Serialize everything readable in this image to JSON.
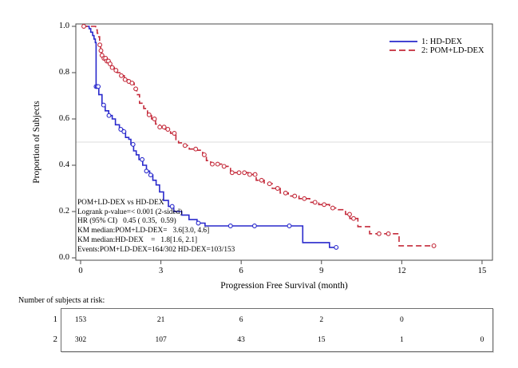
{
  "chart_data": {
    "type": "line",
    "subtype": "kaplan-meier-step",
    "title": "",
    "xlabel": "Progression Free Survival (month)",
    "ylabel": "Proportion of Subjects",
    "xlim": [
      0,
      15
    ],
    "ylim": [
      0.0,
      1.0
    ],
    "xticks": [
      "0",
      "3",
      "6",
      "9",
      "12",
      "15"
    ],
    "xtick_values": [
      0,
      3,
      6,
      9,
      12,
      15
    ],
    "yticks": [
      "0.0",
      "0.2",
      "0.4",
      "0.6",
      "0.8",
      "1.0"
    ],
    "ytick_values": [
      0.0,
      0.2,
      0.4,
      0.6,
      0.8,
      1.0
    ],
    "reference_line_y": 0.5,
    "grid": "single-horizontal-reference",
    "legend_position": "top-right-inside",
    "colors": {
      "hd_dex": "#2929cc",
      "pom_ld_dex": "#c42a3a",
      "reference_line": "#dcdcdc",
      "frame": "#4a4a4a"
    },
    "legend": [
      {
        "label": "1: HD-DEX",
        "color": "#2929cc",
        "style": "solid"
      },
      {
        "label": "2: POM+LD-DEX",
        "color": "#c42a3a",
        "style": "dashed"
      }
    ],
    "series": [
      {
        "name": "1: HD-DEX",
        "color": "#2929cc",
        "dash": "",
        "steps": [
          [
            0.06,
            1.0
          ],
          [
            0.28,
            1.0
          ],
          [
            0.32,
            0.99
          ],
          [
            0.38,
            0.975
          ],
          [
            0.45,
            0.96
          ],
          [
            0.5,
            0.945
          ],
          [
            0.55,
            0.93
          ],
          [
            0.58,
            0.74
          ],
          [
            0.68,
            0.705
          ],
          [
            0.8,
            0.66
          ],
          [
            0.92,
            0.635
          ],
          [
            1.05,
            0.615
          ],
          [
            1.18,
            0.6
          ],
          [
            1.3,
            0.575
          ],
          [
            1.45,
            0.555
          ],
          [
            1.58,
            0.545
          ],
          [
            1.68,
            0.52
          ],
          [
            1.8,
            0.512
          ],
          [
            1.88,
            0.49
          ],
          [
            1.98,
            0.462
          ],
          [
            2.08,
            0.445
          ],
          [
            2.18,
            0.425
          ],
          [
            2.32,
            0.4
          ],
          [
            2.46,
            0.375
          ],
          [
            2.58,
            0.358
          ],
          [
            2.7,
            0.335
          ],
          [
            2.82,
            0.315
          ],
          [
            2.95,
            0.285
          ],
          [
            3.1,
            0.248
          ],
          [
            3.28,
            0.222
          ],
          [
            3.48,
            0.2
          ],
          [
            3.78,
            0.185
          ],
          [
            4.05,
            0.165
          ],
          [
            4.35,
            0.15
          ],
          [
            4.65,
            0.138
          ],
          [
            8.3,
            0.066
          ],
          [
            9.3,
            0.045
          ],
          [
            9.55,
            0.045
          ]
        ],
        "censor_times": [
          0.58,
          0.62,
          0.66,
          0.86,
          1.06,
          1.5,
          1.62,
          1.96,
          2.3,
          2.46,
          2.62,
          3.42,
          4.4,
          5.6,
          6.5,
          7.8,
          9.55
        ]
      },
      {
        "name": "2: POM+LD-DEX",
        "color": "#c42a3a",
        "dash": "7 4",
        "steps": [
          [
            0.06,
            1.0
          ],
          [
            0.5,
            1.0
          ],
          [
            0.56,
            0.985
          ],
          [
            0.62,
            0.97
          ],
          [
            0.68,
            0.955
          ],
          [
            0.71,
            0.92
          ],
          [
            0.75,
            0.895
          ],
          [
            0.79,
            0.875
          ],
          [
            0.86,
            0.862
          ],
          [
            0.96,
            0.85
          ],
          [
            1.06,
            0.838
          ],
          [
            1.16,
            0.822
          ],
          [
            1.26,
            0.81
          ],
          [
            1.36,
            0.8
          ],
          [
            1.5,
            0.787
          ],
          [
            1.63,
            0.77
          ],
          [
            1.76,
            0.762
          ],
          [
            1.9,
            0.755
          ],
          [
            2.0,
            0.73
          ],
          [
            2.1,
            0.705
          ],
          [
            2.2,
            0.668
          ],
          [
            2.36,
            0.645
          ],
          [
            2.5,
            0.618
          ],
          [
            2.65,
            0.6
          ],
          [
            2.8,
            0.578
          ],
          [
            2.96,
            0.565
          ],
          [
            3.16,
            0.555
          ],
          [
            3.36,
            0.538
          ],
          [
            3.56,
            0.508
          ],
          [
            3.66,
            0.497
          ],
          [
            3.86,
            0.485
          ],
          [
            4.06,
            0.47
          ],
          [
            4.36,
            0.465
          ],
          [
            4.56,
            0.445
          ],
          [
            4.7,
            0.42
          ],
          [
            4.86,
            0.405
          ],
          [
            5.3,
            0.395
          ],
          [
            5.6,
            0.368
          ],
          [
            6.26,
            0.36
          ],
          [
            6.56,
            0.335
          ],
          [
            6.86,
            0.32
          ],
          [
            7.16,
            0.3
          ],
          [
            7.46,
            0.28
          ],
          [
            7.76,
            0.267
          ],
          [
            8.16,
            0.256
          ],
          [
            8.56,
            0.24
          ],
          [
            8.9,
            0.23
          ],
          [
            9.3,
            0.215
          ],
          [
            9.56,
            0.208
          ],
          [
            9.9,
            0.188
          ],
          [
            10.06,
            0.17
          ],
          [
            10.36,
            0.135
          ],
          [
            10.8,
            0.104
          ],
          [
            11.9,
            0.052
          ],
          [
            13.2,
            0.052
          ]
        ],
        "censor_times": [
          0.12,
          0.72,
          0.76,
          0.8,
          0.87,
          0.93,
          0.98,
          1.04,
          1.1,
          1.18,
          1.32,
          1.52,
          1.66,
          1.8,
          1.92,
          2.06,
          2.56,
          2.76,
          2.96,
          3.12,
          3.26,
          3.5,
          3.9,
          4.3,
          4.62,
          4.92,
          5.12,
          5.36,
          5.66,
          5.92,
          6.12,
          6.32,
          6.52,
          6.76,
          7.06,
          7.36,
          7.66,
          8.0,
          8.36,
          8.76,
          9.1,
          9.42,
          10.05,
          10.2,
          11.15,
          11.5,
          13.2
        ]
      }
    ],
    "annotations": {
      "lines": [
        "POM+LD-DEX vs HD-DEX",
        "Logrank p-value=< 0.001 (2-sided)",
        "HR (95% CI)   0.45 ( 0.35,  0.59)",
        "KM median:POM+LD-DEX=   3.6[3.0, 4.6]",
        "KM median:HD-DEX    =   1.8[1.6, 2.1]",
        "Events:POM+LD-DEX=164/302 HD-DEX=103/153"
      ]
    }
  },
  "risk_table": {
    "title": "Number of subjects at risk:",
    "times": [
      0,
      3,
      6,
      9,
      12,
      15
    ],
    "rows": [
      {
        "label": "1",
        "counts": [
          153,
          21,
          6,
          2,
          0,
          null
        ]
      },
      {
        "label": "2",
        "counts": [
          302,
          107,
          43,
          15,
          1,
          0
        ]
      }
    ]
  }
}
